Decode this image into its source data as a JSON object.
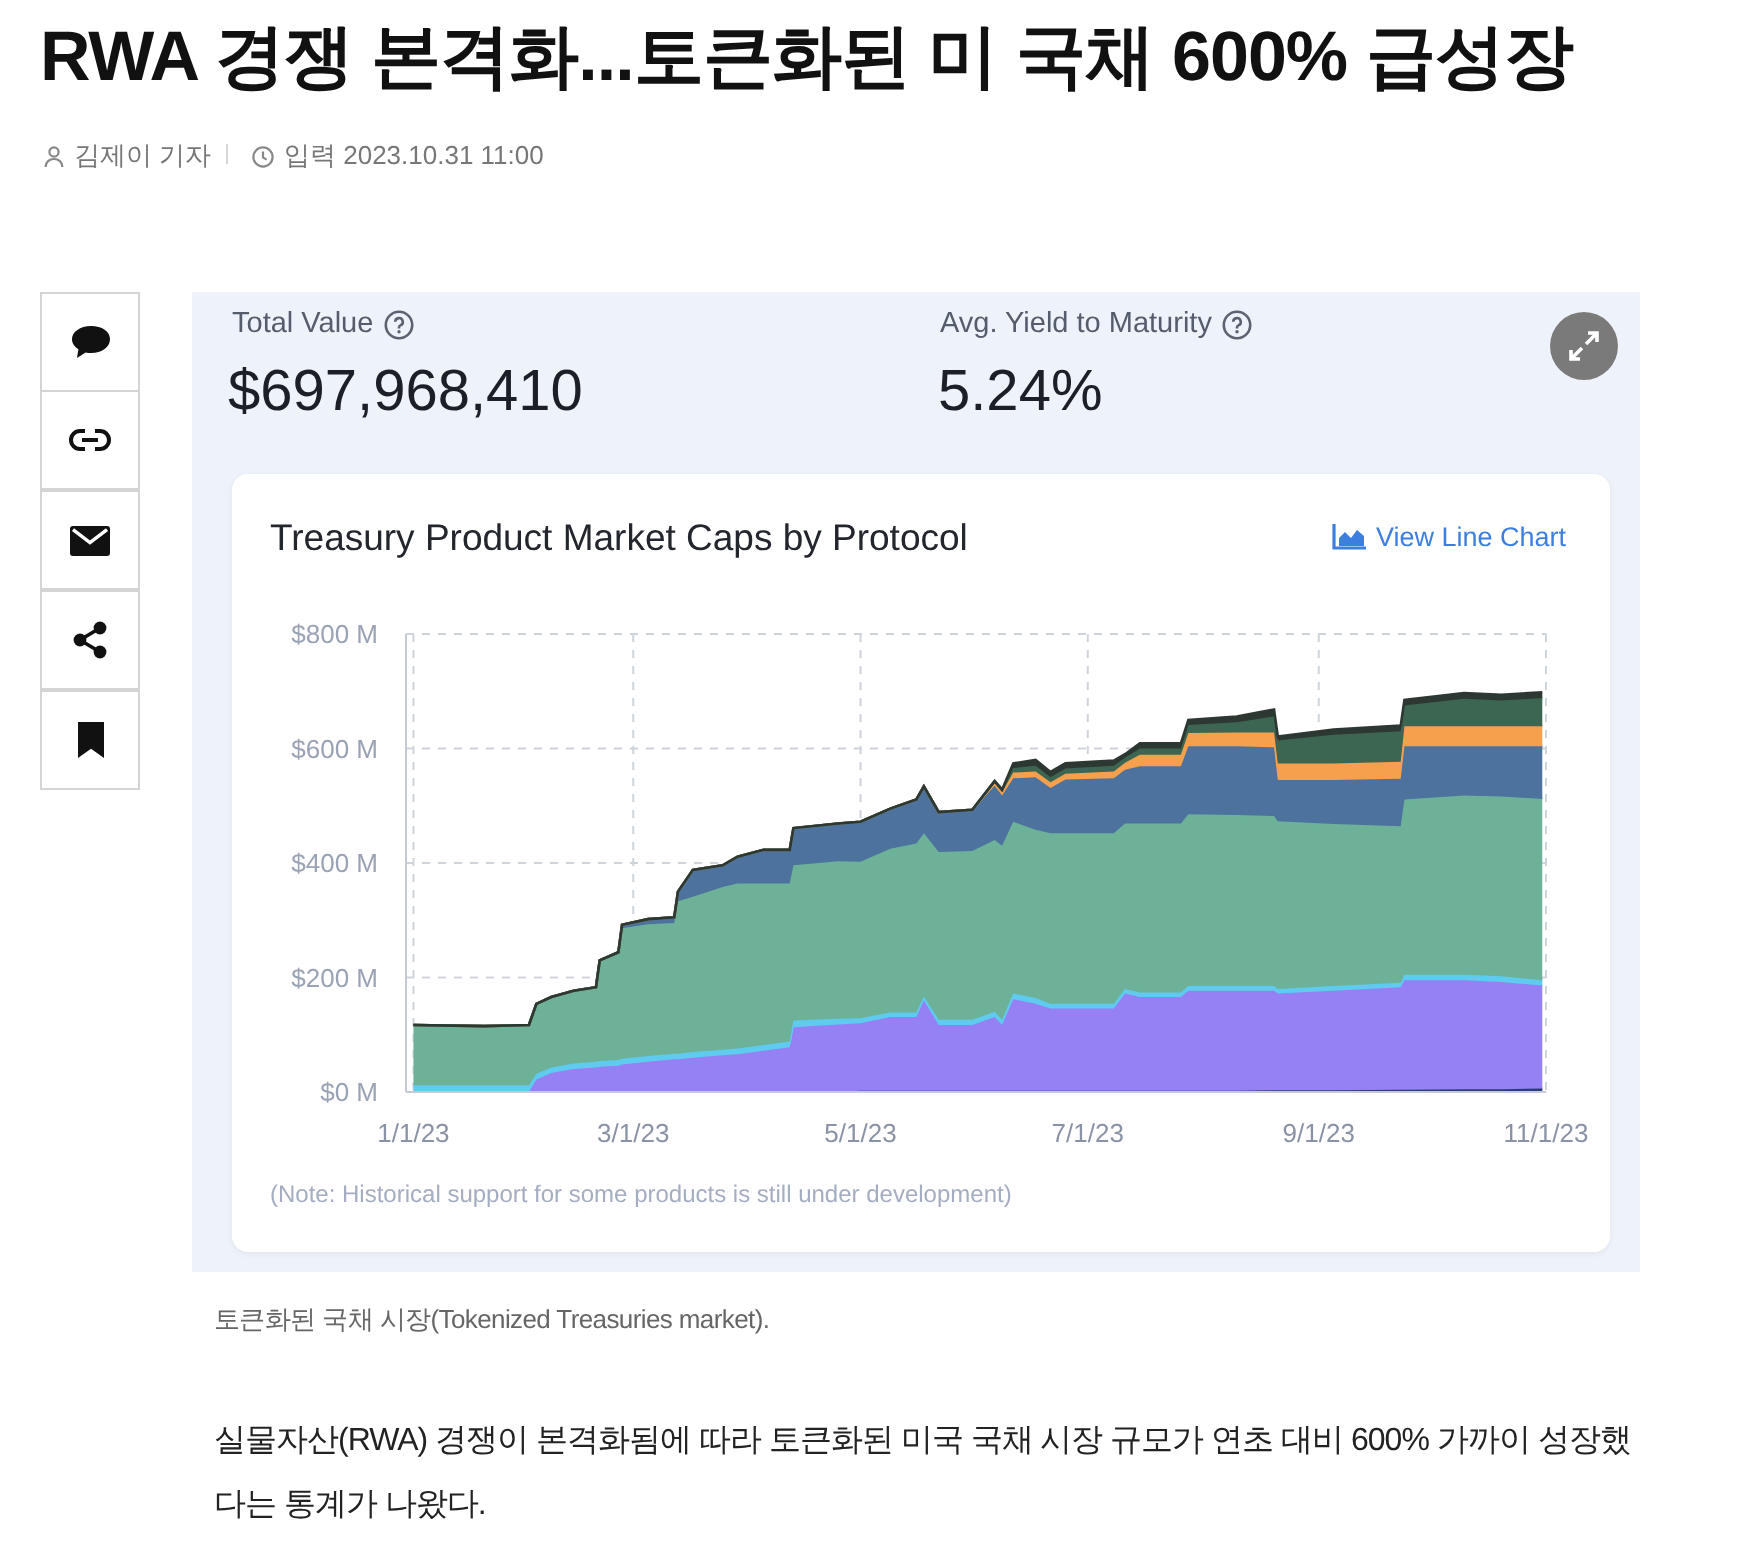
{
  "chart_data": {
    "type": "area",
    "title": "Treasury Product Market Caps by Protocol",
    "annotations": [
      "RWA 경쟁 본격화...토큰화된 미 국채 600% 급성장",
      "김제이 기자",
      "입력 2023.10.31 11:00",
      "Total Value",
      "$697,968,410",
      "Avg. Yield to Maturity",
      "5.24%",
      "View Line Chart",
      "(Note: Historical support for some products is still under development)",
      "토큰화된 국채 시장(Tokenized Treasuries market).",
      "실물자산(RWA) 경쟁이 본격화됨에 따라 토큰화된 미국 국채 시장 규모가 연초 대비 600% 가까이 성장했다는 통계가 나왔다."
    ],
    "x": [
      "2023-01-01",
      "2023-01-20",
      "2023-02-01",
      "2023-02-03",
      "2023-02-07",
      "2023-02-13",
      "2023-02-19",
      "2023-02-20",
      "2023-02-25",
      "2023-02-26",
      "2023-03-05",
      "2023-03-12",
      "2023-03-13",
      "2023-03-17",
      "2023-03-25",
      "2023-03-29",
      "2023-04-05",
      "2023-04-12",
      "2023-04-13",
      "2023-04-25",
      "2023-05-01",
      "2023-05-09",
      "2023-05-16",
      "2023-05-18",
      "2023-05-22",
      "2023-05-31",
      "2023-06-06",
      "2023-06-08",
      "2023-06-11",
      "2023-06-17",
      "2023-06-21",
      "2023-06-25",
      "2023-07-08",
      "2023-07-11",
      "2023-07-15",
      "2023-07-26",
      "2023-07-28",
      "2023-08-10",
      "2023-08-20",
      "2023-08-21",
      "2023-09-05",
      "2023-09-23",
      "2023-09-24",
      "2023-10-10",
      "2023-10-20",
      "2023-10-31"
    ],
    "xlim": [
      "2022-12-30",
      "2023-11-01"
    ],
    "xticks": [
      {
        "value": "2023-01-01",
        "label": "1/1/23"
      },
      {
        "value": "2023-03-01",
        "label": "3/1/23"
      },
      {
        "value": "2023-05-01",
        "label": "5/1/23"
      },
      {
        "value": "2023-07-01",
        "label": "7/1/23"
      },
      {
        "value": "2023-09-01",
        "label": "9/1/23"
      },
      {
        "value": "2023-11-01",
        "label": "11/1/23"
      }
    ],
    "ylim": [
      0,
      800
    ],
    "yticks": [
      {
        "value": 0,
        "label": "$0 M"
      },
      {
        "value": 200,
        "label": "$200 M"
      },
      {
        "value": 400,
        "label": "$400 M"
      },
      {
        "value": 600,
        "label": "$600 M"
      },
      {
        "value": 800,
        "label": "$800 M"
      }
    ],
    "grid": true,
    "stacked": true,
    "series": [
      {
        "color": "#2c3e7a",
        "values": [
          0,
          0,
          0,
          0,
          0,
          0,
          0,
          0,
          0,
          0,
          0,
          0,
          0,
          0,
          0,
          0,
          0,
          0,
          0,
          0,
          2,
          2,
          2,
          2,
          2,
          2,
          2,
          2,
          2,
          2,
          2,
          2,
          2,
          2,
          2,
          2,
          2,
          2,
          3,
          3,
          3,
          4,
          4,
          5,
          5,
          6
        ]
      },
      {
        "color": "#9580f4",
        "values": [
          0,
          0,
          0,
          22,
          33,
          40,
          43,
          44,
          46,
          48,
          53,
          57,
          57,
          60,
          64,
          66,
          72,
          78,
          113,
          118,
          118,
          129,
          129,
          158,
          115,
          115,
          129,
          115,
          160,
          152,
          144,
          144,
          144,
          170,
          164,
          164,
          175,
          175,
          174,
          169,
          174,
          179,
          191,
          190,
          187,
          180
        ]
      },
      {
        "color": "#5ecbef",
        "values": [
          12,
          12,
          12,
          10,
          10,
          10,
          10,
          10,
          10,
          10,
          10,
          10,
          10,
          10,
          10,
          10,
          10,
          10,
          12,
          10,
          9,
          8,
          8,
          7,
          9,
          9,
          9,
          9,
          10,
          10,
          8,
          8,
          8,
          8,
          8,
          8,
          8,
          8,
          8,
          8,
          8,
          8,
          10,
          10,
          10,
          9
        ]
      },
      {
        "color": "#6db298",
        "values": [
          105,
          103,
          105,
          122,
          123,
          127,
          130,
          176,
          188,
          228,
          230,
          228,
          266,
          271,
          284,
          288,
          282,
          276,
          271,
          275,
          273,
          286,
          295,
          285,
          293,
          295,
          300,
          304,
          300,
          294,
          298,
          298,
          298,
          289,
          295,
          295,
          300,
          299,
          297,
          293,
          283,
          273,
          306,
          313,
          314,
          317
        ]
      },
      {
        "color": "#4d729e",
        "values": [
          0,
          0,
          0,
          0,
          0,
          0,
          0,
          0,
          0,
          6,
          9,
          10,
          17,
          47,
          38,
          47,
          59,
          59,
          65,
          66,
          70,
          70,
          77,
          82,
          70,
          72,
          95,
          88,
          76,
          92,
          79,
          94,
          96,
          94,
          100,
          100,
          119,
          120,
          120,
          72,
          77,
          83,
          93,
          86,
          88,
          92
        ]
      },
      {
        "color": "#f6a04d",
        "values": [
          0,
          0,
          0,
          0,
          0,
          0,
          0,
          0,
          0,
          0,
          0,
          0,
          0,
          0,
          0,
          0,
          0,
          0,
          0,
          0,
          0,
          0,
          0,
          0,
          0,
          0,
          5,
          6,
          10,
          10,
          10,
          10,
          12,
          12,
          20,
          20,
          23,
          24,
          26,
          29,
          29,
          30,
          35,
          35,
          35,
          35
        ]
      },
      {
        "color": "#3d6652",
        "values": [
          0,
          0,
          0,
          0,
          0,
          0,
          0,
          0,
          0,
          0,
          0,
          0,
          0,
          0,
          0,
          0,
          0,
          0,
          0,
          0,
          0,
          0,
          0,
          0,
          0,
          0,
          3,
          4,
          8,
          10,
          9,
          9,
          10,
          9,
          11,
          11,
          14,
          18,
          28,
          40,
          50,
          53,
          36,
          48,
          45,
          49
        ]
      },
      {
        "color": "#2d3833",
        "values": [
          0,
          0,
          0,
          0,
          0,
          0,
          0,
          0,
          0,
          0,
          0,
          0,
          0,
          0,
          0,
          0,
          0,
          0,
          0,
          0,
          0,
          0,
          0,
          0,
          0,
          0,
          0,
          0,
          8,
          10,
          9,
          9,
          9,
          6,
          9,
          9,
          9,
          10,
          12,
          7,
          9,
          10,
          10,
          10,
          10,
          10
        ]
      }
    ]
  }
}
